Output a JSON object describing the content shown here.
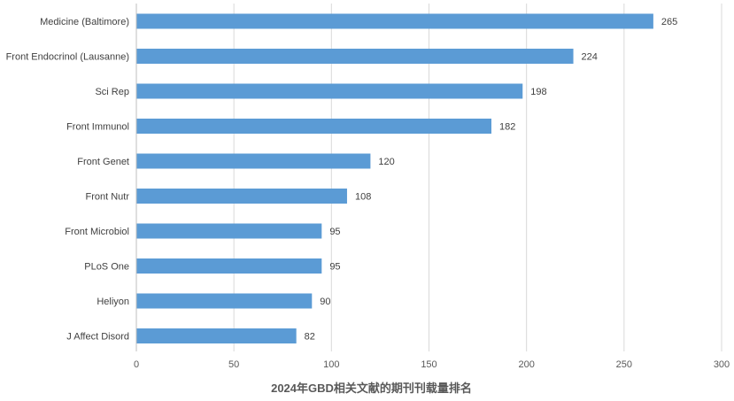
{
  "chart_data": {
    "type": "bar",
    "orientation": "horizontal",
    "title": "2024年GBD相关文献的期刊刊载量排名",
    "xlabel": "",
    "ylabel": "",
    "categories": [
      "Medicine (Baltimore)",
      "Front Endocrinol (Lausanne)",
      "Sci Rep",
      "Front Immunol",
      "Front Genet",
      "Front Nutr",
      "Front Microbiol",
      "PLoS One",
      "Heliyon",
      "J Affect Disord"
    ],
    "values": [
      265,
      224,
      198,
      182,
      120,
      108,
      95,
      95,
      90,
      82
    ],
    "xlim": [
      0,
      300
    ],
    "xticks": [
      0,
      50,
      100,
      150,
      200,
      250,
      300
    ],
    "grid": true,
    "data_labels": true,
    "legend": "none",
    "colors": {
      "bar": "#5b9bd5"
    }
  }
}
